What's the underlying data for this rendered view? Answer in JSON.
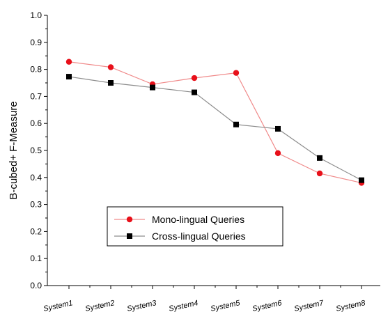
{
  "chart_data": {
    "type": "line",
    "title": "",
    "xlabel": "",
    "ylabel": "B-cubed+ F-Measure",
    "ylim": [
      0.0,
      1.0
    ],
    "yticks": [
      "0.0",
      "0.1",
      "0.2",
      "0.3",
      "0.4",
      "0.5",
      "0.6",
      "0.7",
      "0.8",
      "0.9",
      "1.0"
    ],
    "categories": [
      "System1",
      "System2",
      "System3",
      "System4",
      "System5",
      "System6",
      "System7",
      "System8"
    ],
    "grid": false,
    "legend_position": "bottom-center",
    "series": [
      {
        "name": "Mono-lingual Queries",
        "marker": "circle",
        "color": "#e8101a",
        "line_color": "#f08a8a",
        "values": [
          0.828,
          0.808,
          0.745,
          0.768,
          0.787,
          0.49,
          0.415,
          0.38
        ]
      },
      {
        "name": "Cross-lingual Queries",
        "marker": "square",
        "color": "#000000",
        "line_color": "#8c8c8c",
        "values": [
          0.773,
          0.75,
          0.733,
          0.715,
          0.596,
          0.58,
          0.472,
          0.39
        ]
      }
    ]
  }
}
